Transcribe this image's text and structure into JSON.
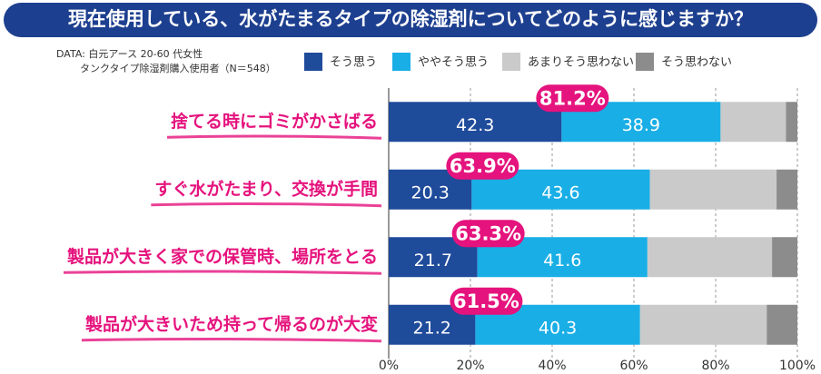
{
  "chart_data": {
    "type": "stacked-barh",
    "title": "現在使用している、水がたまるタイプの除湿剤についてどのように感じますか？",
    "source": [
      "DATA: 白元アース 20-60 代女性",
      "タンクタイプ除湿剤購入使用者（N＝548）"
    ],
    "categories": [
      "捨てる時にゴミがかさばる",
      "すぐ水がたまり、交換が手間",
      "製品が大きく家での保管時、場所をとる",
      "製品が大きいため持って帰るのが大変"
    ],
    "series": [
      {
        "name": "そう思う",
        "color": "#1f4b9b",
        "values": [
          42.3,
          20.3,
          21.7,
          21.2
        ],
        "show_labels": true
      },
      {
        "name": "ややそう思う",
        "color": "#19aee6",
        "values": [
          38.9,
          43.6,
          41.6,
          40.3
        ],
        "show_labels": true
      },
      {
        "name": "あまりそう思わない",
        "color": "#cacaca",
        "values": [
          16.0,
          31.0,
          30.5,
          31.0
        ],
        "show_labels": false
      },
      {
        "name": "そう思わない",
        "color": "#8c8c8c",
        "values": [
          2.8,
          5.1,
          6.2,
          7.5
        ],
        "show_labels": false
      }
    ],
    "totals": {
      "values": [
        81.2,
        63.9,
        63.3,
        61.5
      ],
      "value_labels": [
        "81.2%",
        "63.9%",
        "63.3%",
        "61.5%"
      ],
      "color": "#e5137d"
    },
    "xlim": [
      0,
      100
    ],
    "xticks": [
      {
        "value": 0,
        "label": "0%"
      },
      {
        "value": 20,
        "label": "20%"
      },
      {
        "value": 40,
        "label": "40%"
      },
      {
        "value": 60,
        "label": "60%"
      },
      {
        "value": 80,
        "label": "80%"
      },
      {
        "value": 100,
        "label": "100%"
      }
    ],
    "grid": true,
    "category_color": "#e5137d"
  }
}
